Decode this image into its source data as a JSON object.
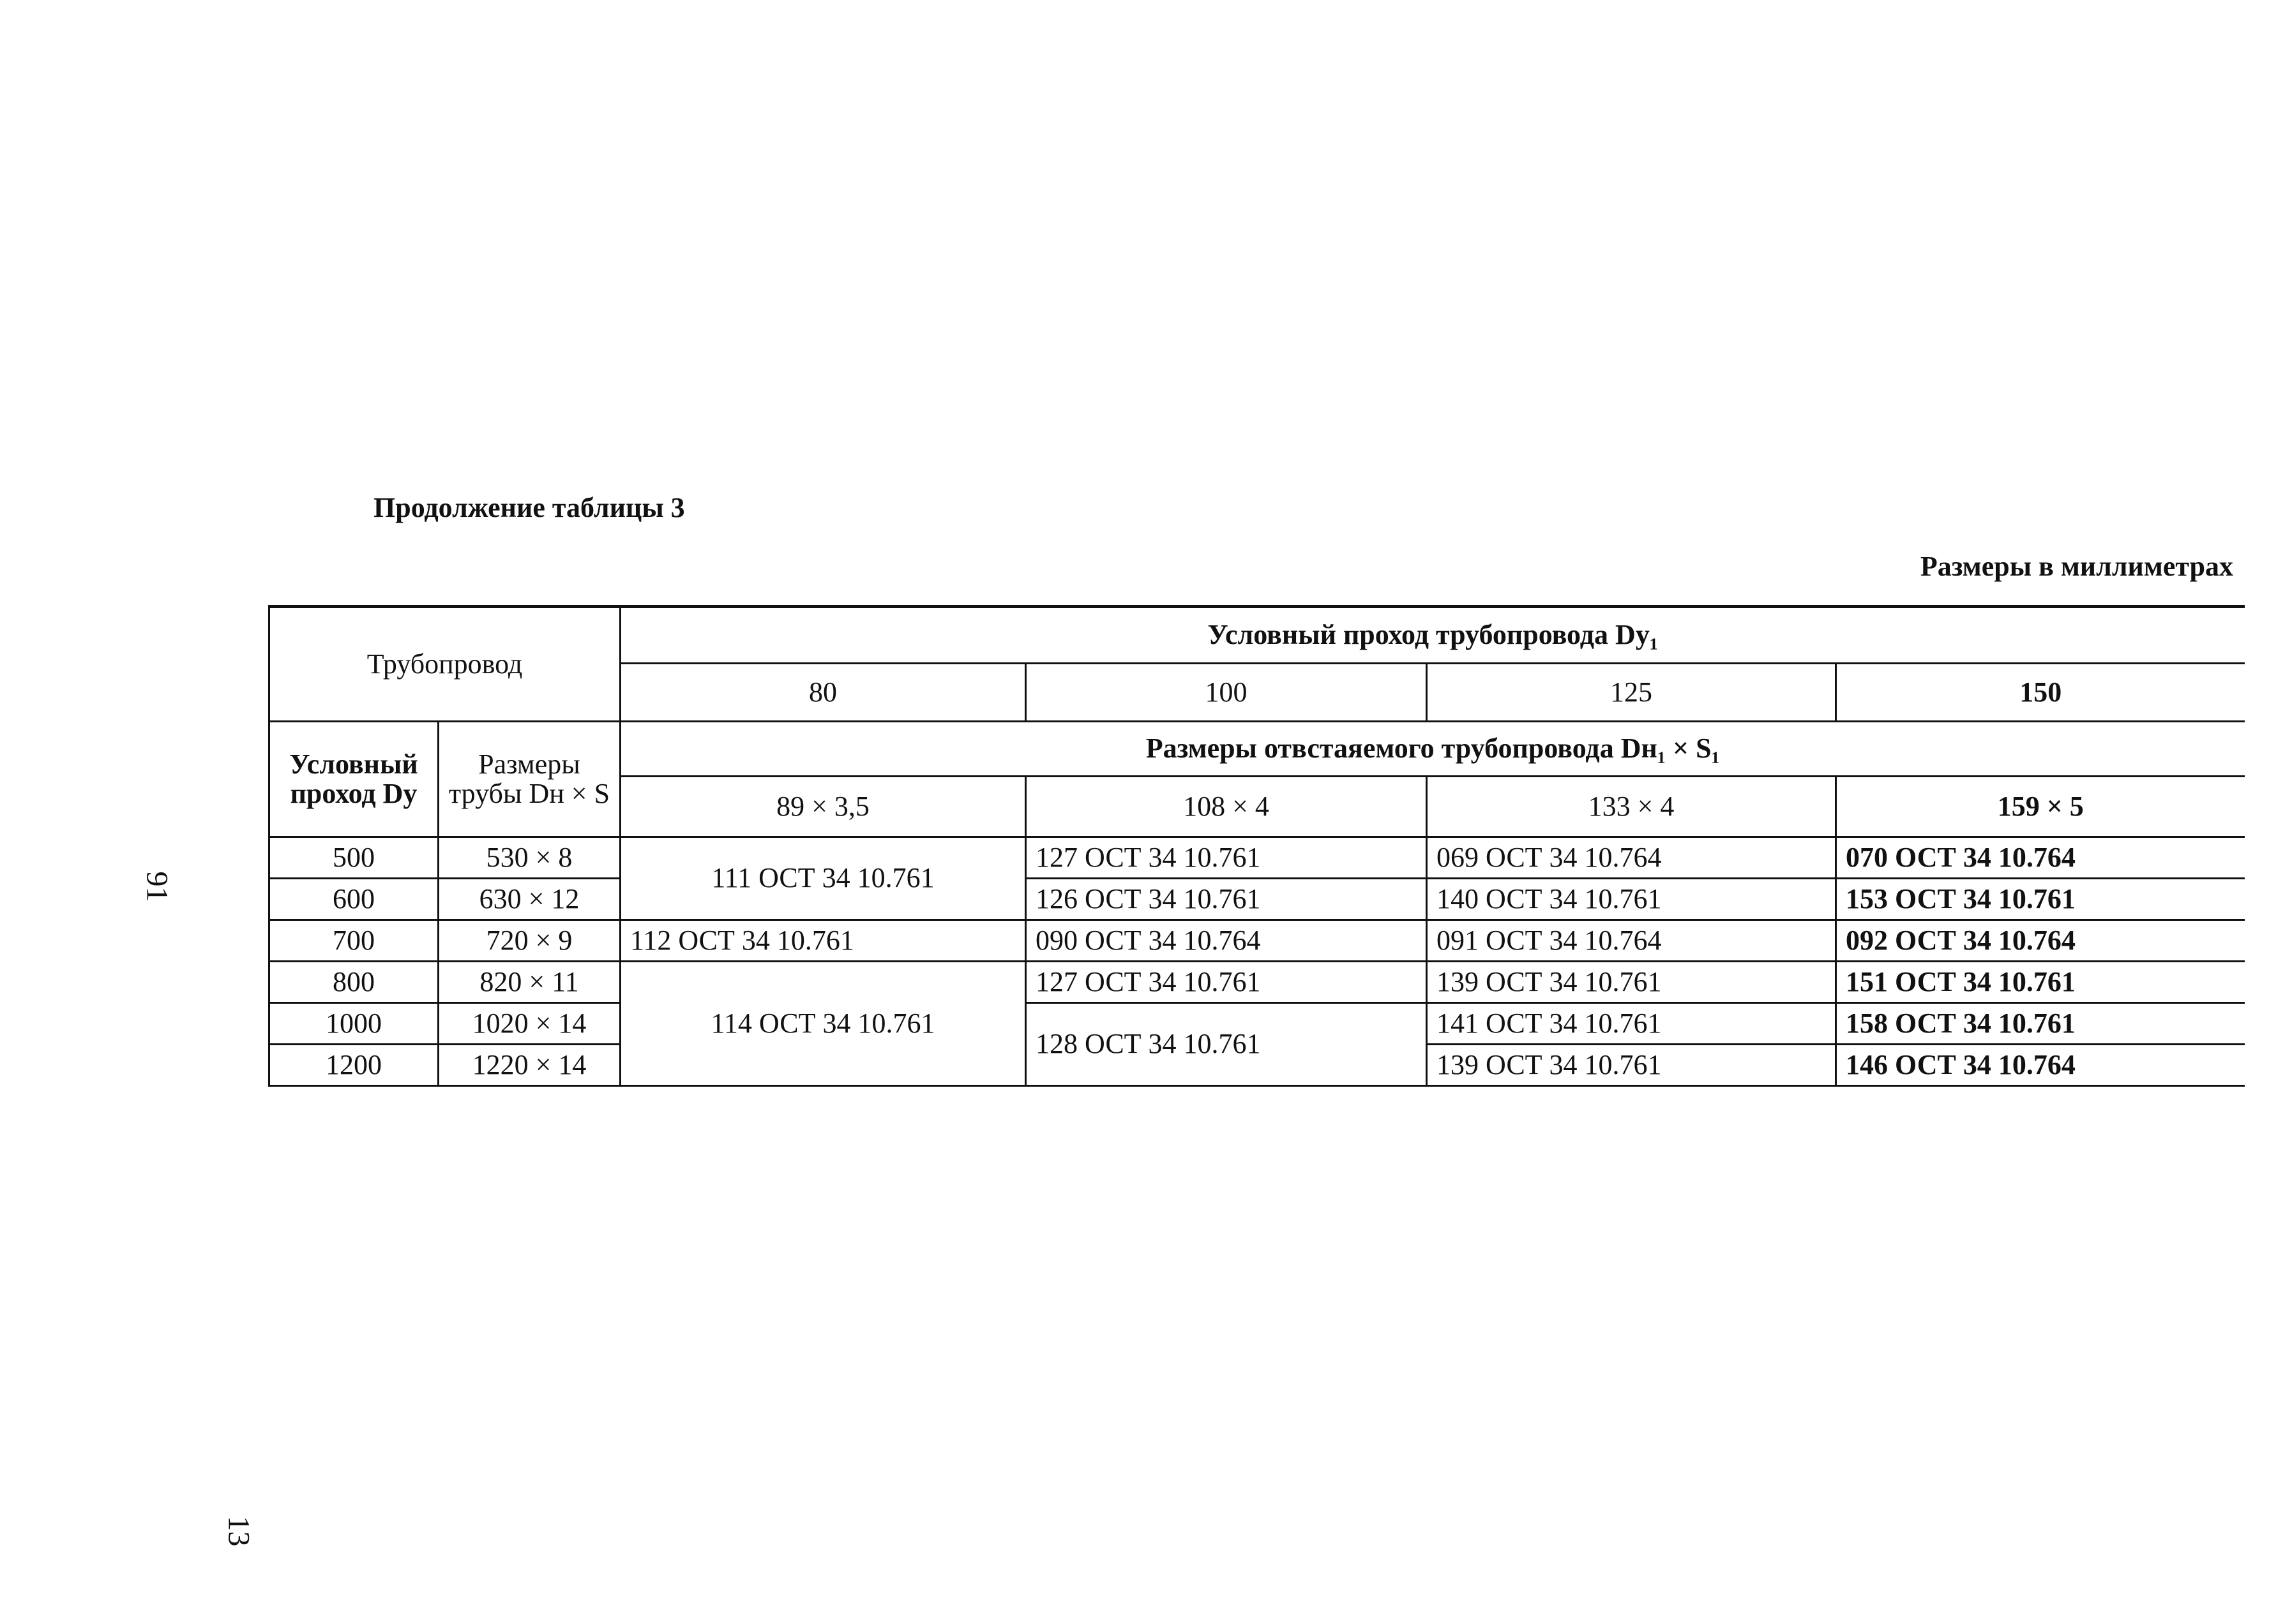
{
  "title": "Продолжение таблицы 3",
  "units": "Размеры в миллиметрах",
  "page_numbers": [
    "91",
    "13"
  ],
  "table": {
    "pipeline_header": "Трубопровод",
    "branch_dy_header": "Условный проход трубопровода Dy₁",
    "branch_dy_values": [
      "80",
      "100",
      "125",
      "150"
    ],
    "dy_header": "Условный проход Dy",
    "pipe_size_header": "Размеры трубы Dн × S",
    "branch_size_header": "Размеры отвстаяемого трубопровода Dн₁ × S₁",
    "branch_sizes": [
      "89 × 3,5",
      "108 × 4",
      "133 × 4",
      "159 × 5"
    ],
    "rows": [
      {
        "dy": "500",
        "size": "530 × 8"
      },
      {
        "dy": "600",
        "size": "630 × 12"
      },
      {
        "dy": "700",
        "size": "720 × 9"
      },
      {
        "dy": "800",
        "size": "820 × 11"
      },
      {
        "dy": "1000",
        "size": "1020 × 14"
      },
      {
        "dy": "1200",
        "size": "1220 × 14"
      }
    ],
    "col80": [
      "111 ОСТ 34 10.761",
      "112 ОСТ 34 10.761",
      "114 ОСТ 34 10.761"
    ],
    "col100": [
      "127 ОСТ 34 10.761",
      "126 ОСТ 34 10.761",
      "090 ОСТ 34 10.764",
      "127 ОСТ 34 10.761",
      "128 ОСТ 34 10.761"
    ],
    "col125": [
      "069 ОСТ 34 10.764",
      "140 ОСТ 34 10.761",
      "091 ОСТ 34 10.764",
      "139 ОСТ 34 10.761",
      "141 ОСТ 34 10.761",
      "139 ОСТ 34 10.761"
    ],
    "col150": [
      "070 ОСТ 34 10.764",
      "153 ОСТ 34 10.761",
      "092 ОСТ 34 10.764",
      "151 ОСТ 34 10.761",
      "158 ОСТ 34 10.761",
      "146 ОСТ 34 10.764"
    ]
  }
}
